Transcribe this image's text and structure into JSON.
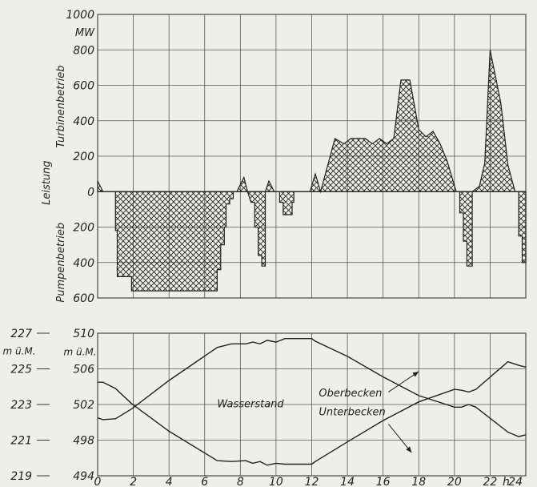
{
  "chart_data": [
    {
      "type": "area",
      "title": "",
      "unit": "MW",
      "ylabel": "Leistung",
      "ylabel_top": "Turbinenbetrieb",
      "ylabel_bottom": "Pumpenbetrieb",
      "xlim": [
        0,
        24
      ],
      "ylim": [
        -600,
        1000
      ],
      "y_display": [
        {
          "v": 1000,
          "label": "1000"
        },
        {
          "v": 800,
          "label": "800"
        },
        {
          "v": 600,
          "label": "600"
        },
        {
          "v": 400,
          "label": "400"
        },
        {
          "v": 200,
          "label": "200"
        },
        {
          "v": 0,
          "label": "0"
        },
        {
          "v": -200,
          "label": "200"
        },
        {
          "v": -400,
          "label": "400"
        },
        {
          "v": -600,
          "label": "600"
        }
      ],
      "grid": true,
      "fill": "crosshatch",
      "series": [
        {
          "x": [
            0,
            0.3,
            0.3,
            1,
            1,
            1.1,
            1.1,
            1.9,
            1.9,
            6.7,
            6.7,
            6.9,
            6.9,
            7.1,
            7.1,
            7.2,
            7.2,
            7.4,
            7.4,
            7.6,
            7.6,
            7.8,
            7.8,
            8.2,
            8.4,
            8.6,
            8.8,
            8.8,
            9.0,
            9.0,
            9.2,
            9.2,
            9.4,
            9.4,
            9.6,
            9.9,
            10.2,
            10.2,
            10.4,
            10.4,
            10.9,
            10.9,
            11.0,
            11.0,
            11.9,
            12.2,
            12.5,
            13.3,
            13.8,
            14.2,
            14.6,
            15.0,
            15.4,
            15.8,
            16.2,
            16.6,
            17.0,
            17.5,
            18.0,
            18.4,
            18.8,
            19.2,
            19.6,
            20.1,
            20.3,
            20.3,
            20.5,
            20.5,
            20.7,
            20.7,
            21.0,
            21.0,
            21.4,
            21.7,
            22.0,
            22.6,
            23.0,
            23.4,
            23.6,
            23.6,
            23.8,
            23.8,
            24.0,
            24.0
          ],
          "y": [
            60,
            0,
            0,
            0,
            -220,
            -220,
            -480,
            -480,
            -560,
            -560,
            -440,
            -440,
            -300,
            -300,
            -200,
            -200,
            -70,
            -70,
            -40,
            -40,
            0,
            0,
            0,
            80,
            0,
            -60,
            -60,
            -200,
            -200,
            -360,
            -360,
            -420,
            -420,
            0,
            60,
            0,
            0,
            -60,
            -60,
            -130,
            -130,
            -60,
            -60,
            0,
            0,
            100,
            0,
            300,
            270,
            300,
            300,
            300,
            270,
            300,
            270,
            300,
            630,
            630,
            350,
            310,
            340,
            270,
            170,
            0,
            0,
            -120,
            -120,
            -280,
            -280,
            -420,
            -420,
            0,
            30,
            160,
            800,
            500,
            150,
            0,
            0,
            -250,
            -250,
            -400,
            -400,
            -340
          ]
        }
      ]
    },
    {
      "type": "line",
      "title": "",
      "xlabel": "h",
      "xlim": [
        0,
        24
      ],
      "x_ticks": [
        0,
        2,
        4,
        6,
        8,
        10,
        12,
        14,
        16,
        18,
        20,
        22,
        24
      ],
      "x_tick_labels": [
        "0",
        "2",
        "4",
        "6",
        "8",
        "10",
        "12",
        "14",
        "16",
        "18",
        "20",
        "22",
        "24"
      ],
      "y_left": {
        "unit": "m ü.M.",
        "ylim": [
          219,
          227
        ],
        "ticks": [
          219,
          221,
          223,
          225,
          227
        ],
        "tick_labels": [
          "219",
          "221",
          "223",
          "225",
          "227"
        ]
      },
      "y_right": {
        "unit": "m ü.M.",
        "ylim": [
          494,
          510
        ],
        "ticks": [
          494,
          498,
          502,
          506,
          510
        ],
        "tick_labels": [
          "494",
          "498",
          "502",
          "506",
          "510"
        ]
      },
      "grid": true,
      "annotation_title": "Wasserstand",
      "series": [
        {
          "name": "Oberbecken",
          "axis": "right",
          "x": [
            0,
            0.3,
            1.0,
            1.9,
            4.0,
            6.7,
            7.5,
            8.3,
            8.7,
            9.1,
            9.5,
            10.0,
            10.5,
            11.0,
            12.0,
            12.2,
            14.0,
            16.0,
            18.0,
            20.0,
            20.4,
            20.8,
            21.2,
            23.0,
            23.6,
            24.0
          ],
          "y": [
            504.5,
            504.5,
            503.8,
            502.1,
            499.0,
            495.7,
            495.6,
            495.7,
            495.4,
            495.6,
            495.2,
            495.4,
            495.3,
            495.3,
            495.3,
            495.6,
            497.8,
            500.2,
            502.3,
            503.7,
            503.6,
            503.4,
            503.7,
            506.8,
            506.4,
            506.2
          ]
        },
        {
          "name": "Unterbecken",
          "axis": "right",
          "x": [
            0,
            0.3,
            1.0,
            1.9,
            4.0,
            6.7,
            7.5,
            8.3,
            8.7,
            9.1,
            9.5,
            10.0,
            10.5,
            11.0,
            12.0,
            12.2,
            14.0,
            16.0,
            18.0,
            20.0,
            20.4,
            20.8,
            21.2,
            23.0,
            23.6,
            24.0
          ],
          "y": [
            500.5,
            500.3,
            500.4,
            501.5,
            504.7,
            508.4,
            508.8,
            508.8,
            509.0,
            508.8,
            509.2,
            509.0,
            509.4,
            509.4,
            509.4,
            509.1,
            507.4,
            505.1,
            503.0,
            501.7,
            501.7,
            502.0,
            501.7,
            498.9,
            498.4,
            498.6
          ]
        }
      ]
    }
  ]
}
